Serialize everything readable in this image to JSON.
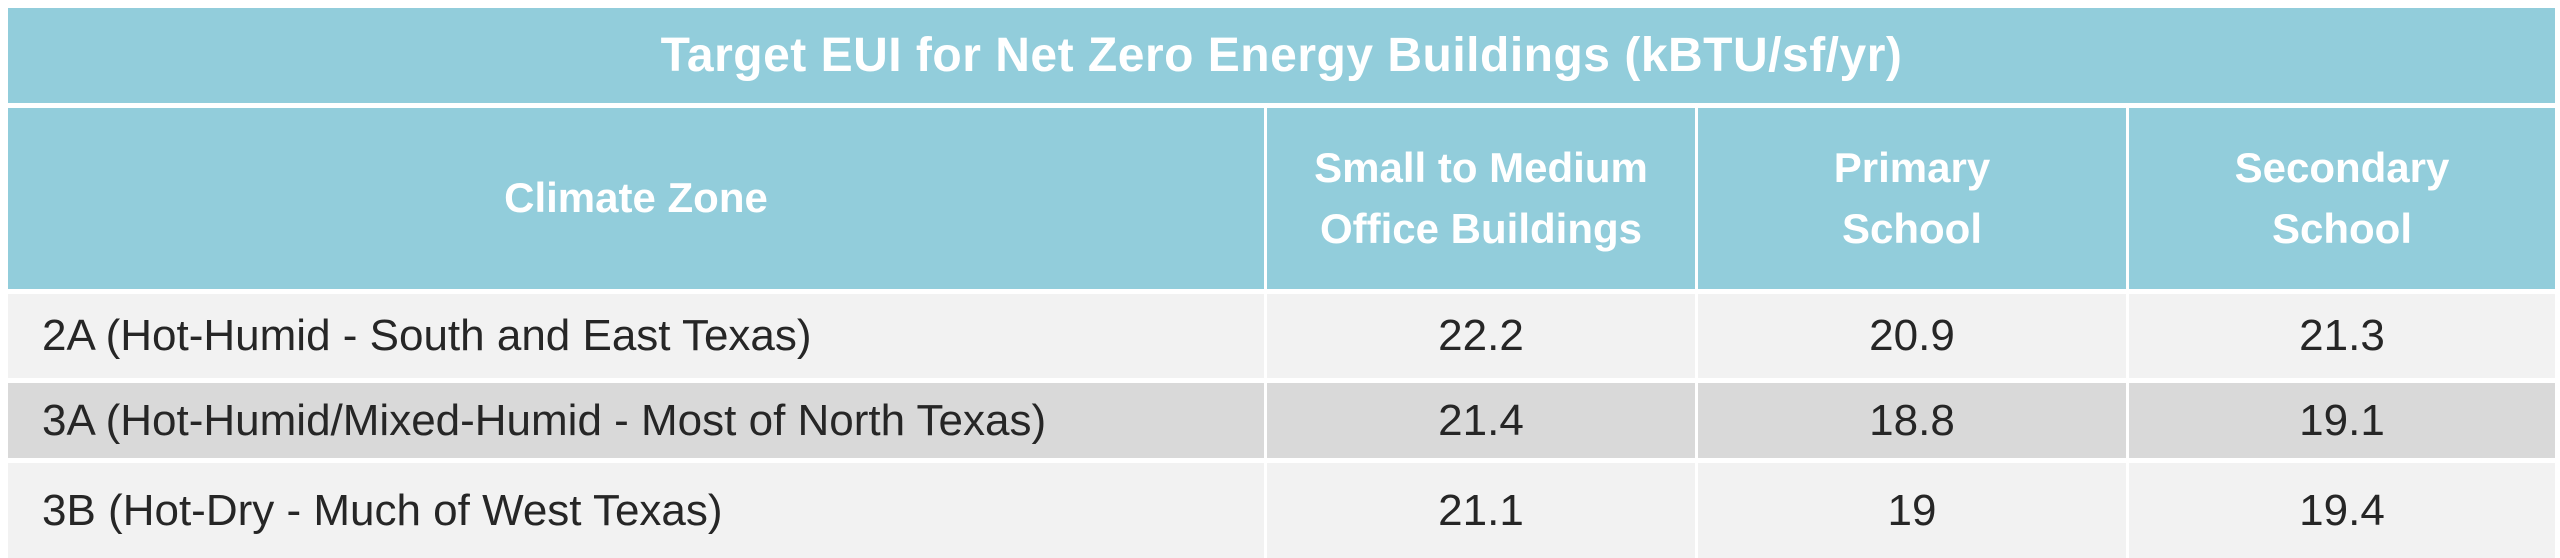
{
  "table": {
    "title": "Target EUI for Net Zero Energy Buildings (kBTU/sf/yr)",
    "header": {
      "climate_zone": "Climate Zone",
      "col2_line1": "Small to Medium",
      "col2_line2": "Office Buildings",
      "col3_line1": "Primary",
      "col3_line2": "School",
      "col4_line1": "Secondary",
      "col4_line2": "School"
    },
    "rows": [
      {
        "zone": "2A (Hot-Humid - South and East Texas)",
        "values": [
          "22.2",
          "20.9",
          "21.3"
        ]
      },
      {
        "zone": "3A (Hot-Humid/Mixed-Humid - Most of North Texas)",
        "values": [
          "21.4",
          "18.8",
          "19.1"
        ]
      },
      {
        "zone": "3B (Hot-Dry - Much of West Texas)",
        "values": [
          "21.1",
          "19",
          "19.4"
        ]
      }
    ]
  },
  "chart_data": {
    "type": "table",
    "title": "Target EUI for Net Zero Energy Buildings (kBTU/sf/yr)",
    "columns": [
      "Climate Zone",
      "Small to Medium Office Buildings",
      "Primary School",
      "Secondary School"
    ],
    "rows": [
      [
        "2A (Hot-Humid - South and East Texas)",
        22.2,
        20.9,
        21.3
      ],
      [
        "3A (Hot-Humid/Mixed-Humid - Most of North Texas)",
        21.4,
        18.8,
        19.1
      ],
      [
        "3B (Hot-Dry - Much of West Texas)",
        21.1,
        19,
        19.4
      ]
    ],
    "units": "kBTU/sf/yr"
  },
  "colors": {
    "header_teal": "#92CDDB",
    "row_light": "#F2F2F2",
    "row_dark": "#D9D9D9",
    "header_text": "#FFFFFF",
    "body_text": "#262626"
  }
}
